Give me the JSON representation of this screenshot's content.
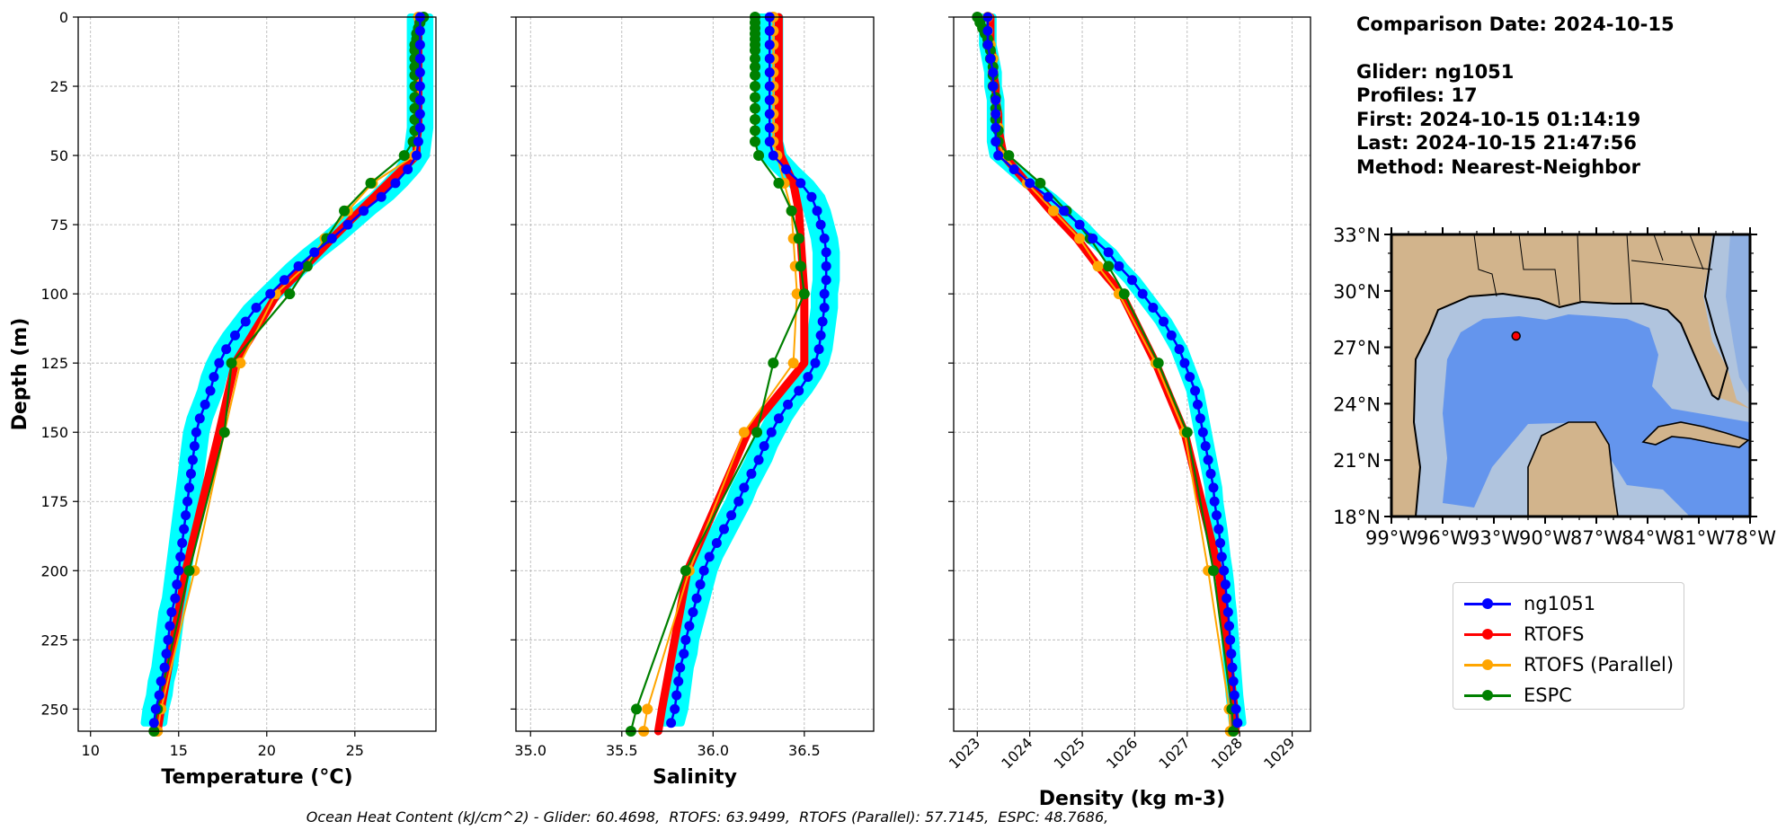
{
  "colors": {
    "glider": "#0000ff",
    "glider_band": "#00ffff",
    "rtofs": "#ff0000",
    "rtofs_parallel": "#ffa500",
    "espc": "#008000",
    "land": "#d2b48c",
    "ocean_deep": "#6495ed",
    "ocean_mid": "#8fb0e3",
    "ocean_shelf": "#b0c4de"
  },
  "info": {
    "comparison_date": "Comparison Date: 2024-10-15",
    "glider": "Glider: ng1051",
    "profiles": "Profiles: 17",
    "first": "First: 2024-10-15 01:14:19",
    "last": "Last: 2024-10-15 21:47:56",
    "method": "Method: Nearest-Neighbor"
  },
  "legend": [
    {
      "name": "ng1051",
      "color": "#0000ff"
    },
    {
      "name": "RTOFS",
      "color": "#ff0000"
    },
    {
      "name": "RTOFS (Parallel)",
      "color": "#ffa500"
    },
    {
      "name": "ESPC",
      "color": "#008000"
    }
  ],
  "footer": "Ocean Heat Content (kJ/cm^2) - Glider: 60.4698,  RTOFS: 63.9499,  RTOFS (Parallel): 57.7145,  ESPC: 48.7686,",
  "map": {
    "lat_ticks": [
      "33°N",
      "30°N",
      "27°N",
      "24°N",
      "21°N",
      "18°N"
    ],
    "lon_ticks": [
      "99°W",
      "96°W",
      "93°W",
      "90°W",
      "87°W",
      "84°W",
      "81°W",
      "78°W"
    ],
    "glider_location": {
      "lon": -91.7,
      "lat": 27.6
    }
  },
  "chart_data": [
    {
      "type": "line",
      "xlabel": "Temperature (°C)",
      "ylabel": "Depth (m)",
      "xlim": [
        9.3,
        29.6
      ],
      "ylim": [
        258,
        0
      ],
      "xticks": [
        10,
        15,
        20,
        25
      ],
      "yticks": [
        0,
        25,
        50,
        75,
        100,
        125,
        150,
        175,
        200,
        225,
        250
      ],
      "grid": true,
      "series": [
        {
          "name": "ng1051",
          "depth": [
            0,
            5,
            10,
            15,
            20,
            25,
            30,
            35,
            40,
            45,
            50,
            55,
            60,
            65,
            70,
            75,
            80,
            85,
            90,
            95,
            100,
            105,
            110,
            115,
            120,
            125,
            130,
            135,
            140,
            145,
            150,
            155,
            160,
            165,
            170,
            175,
            180,
            185,
            190,
            195,
            200,
            205,
            210,
            215,
            220,
            225,
            230,
            235,
            240,
            245,
            250,
            255
          ],
          "values": [
            28.7,
            28.7,
            28.7,
            28.7,
            28.7,
            28.7,
            28.7,
            28.7,
            28.7,
            28.6,
            28.5,
            28.0,
            27.3,
            26.5,
            25.5,
            24.6,
            23.7,
            22.7,
            21.8,
            21.0,
            20.2,
            19.4,
            18.8,
            18.2,
            17.7,
            17.3,
            17.0,
            16.8,
            16.5,
            16.2,
            16.0,
            15.9,
            15.8,
            15.7,
            15.6,
            15.5,
            15.4,
            15.3,
            15.2,
            15.1,
            15.0,
            14.9,
            14.8,
            14.6,
            14.5,
            14.4,
            14.3,
            14.2,
            14.0,
            13.9,
            13.7,
            13.6
          ],
          "band_halfwidth": 0.55
        },
        {
          "name": "RTOFS",
          "depth": [
            0,
            5,
            10,
            15,
            20,
            25,
            30,
            35,
            40,
            45,
            50,
            60,
            70,
            80,
            90,
            100,
            125,
            150,
            200,
            250,
            258
          ],
          "values": [
            28.6,
            28.6,
            28.6,
            28.6,
            28.6,
            28.6,
            28.6,
            28.6,
            28.6,
            28.5,
            28.5,
            26.9,
            25.3,
            23.7,
            22.2,
            20.6,
            18.2,
            17.3,
            15.4,
            14.0,
            13.8
          ]
        },
        {
          "name": "RTOFS (Parallel)",
          "depth": [
            0,
            5,
            10,
            15,
            20,
            25,
            30,
            35,
            40,
            45,
            50,
            60,
            70,
            80,
            90,
            100,
            125,
            150,
            200,
            250,
            258
          ],
          "values": [
            28.6,
            28.6,
            28.6,
            28.6,
            28.6,
            28.6,
            28.6,
            28.6,
            28.6,
            28.5,
            28.4,
            26.0,
            24.6,
            23.3,
            22.2,
            20.5,
            18.5,
            17.6,
            15.9,
            14.0,
            13.8
          ]
        },
        {
          "name": "ESPC",
          "depth": [
            0,
            2,
            4,
            6,
            8,
            10,
            12,
            15,
            18,
            21,
            25,
            29,
            33,
            37,
            41,
            45,
            50,
            60,
            70,
            80,
            90,
            100,
            125,
            150,
            200,
            250,
            258
          ],
          "values": [
            28.9,
            28.7,
            28.6,
            28.5,
            28.5,
            28.4,
            28.4,
            28.4,
            28.4,
            28.4,
            28.4,
            28.4,
            28.4,
            28.4,
            28.4,
            28.3,
            27.8,
            25.9,
            24.4,
            23.4,
            22.3,
            21.3,
            18.0,
            17.6,
            15.6,
            13.8,
            13.6
          ]
        }
      ]
    },
    {
      "type": "line",
      "xlabel": "Salinity",
      "ylim": [
        258,
        0
      ],
      "xlim": [
        34.92,
        36.88
      ],
      "xticks": [
        35.0,
        35.5,
        36.0,
        36.5
      ],
      "yticks": [
        0,
        25,
        50,
        75,
        100,
        125,
        150,
        175,
        200,
        225,
        250
      ],
      "grid": true,
      "series": [
        {
          "name": "ng1051",
          "depth": [
            0,
            5,
            10,
            15,
            20,
            25,
            30,
            35,
            40,
            45,
            50,
            55,
            60,
            65,
            70,
            75,
            80,
            85,
            90,
            95,
            100,
            105,
            110,
            115,
            120,
            125,
            130,
            135,
            140,
            145,
            150,
            155,
            160,
            165,
            170,
            175,
            180,
            185,
            190,
            195,
            200,
            205,
            210,
            215,
            220,
            225,
            230,
            235,
            240,
            245,
            250,
            255
          ],
          "values": [
            36.31,
            36.31,
            36.31,
            36.31,
            36.31,
            36.31,
            36.31,
            36.31,
            36.31,
            36.31,
            36.33,
            36.4,
            36.48,
            36.54,
            36.57,
            36.59,
            36.61,
            36.62,
            36.62,
            36.62,
            36.61,
            36.61,
            36.6,
            36.59,
            36.58,
            36.56,
            36.52,
            36.47,
            36.41,
            36.36,
            36.32,
            36.28,
            36.25,
            36.21,
            36.17,
            36.14,
            36.1,
            36.06,
            36.02,
            35.98,
            35.95,
            35.93,
            35.91,
            35.89,
            35.87,
            35.85,
            35.84,
            35.82,
            35.81,
            35.8,
            35.79,
            35.77
          ],
          "band_halfwidth": 0.055
        },
        {
          "name": "RTOFS",
          "depth": [
            0,
            5,
            10,
            15,
            20,
            25,
            30,
            35,
            40,
            45,
            50,
            60,
            70,
            80,
            90,
            100,
            125,
            150,
            200,
            250,
            258
          ],
          "values": [
            36.36,
            36.36,
            36.36,
            36.36,
            36.36,
            36.36,
            36.36,
            36.36,
            36.36,
            36.36,
            36.37,
            36.44,
            36.47,
            36.48,
            36.49,
            36.5,
            36.5,
            36.19,
            35.86,
            35.72,
            35.7
          ]
        },
        {
          "name": "RTOFS (Parallel)",
          "depth": [
            0,
            5,
            10,
            15,
            20,
            25,
            30,
            35,
            40,
            45,
            50,
            60,
            70,
            80,
            90,
            100,
            125,
            150,
            200,
            250,
            258
          ],
          "values": [
            36.33,
            36.33,
            36.33,
            36.33,
            36.33,
            36.33,
            36.33,
            36.33,
            36.33,
            36.33,
            36.35,
            36.39,
            36.43,
            36.44,
            36.45,
            36.46,
            36.44,
            36.17,
            35.87,
            35.64,
            35.62
          ]
        },
        {
          "name": "ESPC",
          "depth": [
            0,
            2,
            4,
            6,
            8,
            10,
            12,
            15,
            18,
            21,
            25,
            29,
            33,
            37,
            41,
            45,
            50,
            60,
            70,
            80,
            90,
            100,
            125,
            150,
            200,
            250,
            258
          ],
          "values": [
            36.23,
            36.23,
            36.23,
            36.23,
            36.23,
            36.23,
            36.23,
            36.23,
            36.23,
            36.23,
            36.23,
            36.23,
            36.23,
            36.23,
            36.23,
            36.23,
            36.25,
            36.36,
            36.43,
            36.47,
            36.48,
            36.5,
            36.33,
            36.24,
            35.85,
            35.58,
            35.55
          ]
        }
      ]
    },
    {
      "type": "line",
      "xlabel": "Density (kg m-3)",
      "ylim": [
        258,
        0
      ],
      "xlim": [
        1022.55,
        1029.35
      ],
      "xticks": [
        1023,
        1024,
        1025,
        1026,
        1027,
        1028,
        1029
      ],
      "yticks": [
        0,
        25,
        50,
        75,
        100,
        125,
        150,
        175,
        200,
        225,
        250
      ],
      "grid": true,
      "series": [
        {
          "name": "ng1051",
          "depth": [
            0,
            5,
            10,
            15,
            20,
            25,
            30,
            35,
            40,
            45,
            50,
            55,
            60,
            65,
            70,
            75,
            80,
            85,
            90,
            95,
            100,
            105,
            110,
            115,
            120,
            125,
            130,
            135,
            140,
            145,
            150,
            155,
            160,
            165,
            170,
            175,
            180,
            185,
            190,
            195,
            200,
            205,
            210,
            215,
            220,
            225,
            230,
            235,
            240,
            245,
            250,
            255
          ],
          "values": [
            1023.2,
            1023.2,
            1023.2,
            1023.25,
            1023.3,
            1023.3,
            1023.35,
            1023.35,
            1023.35,
            1023.35,
            1023.4,
            1023.7,
            1024.0,
            1024.35,
            1024.65,
            1024.95,
            1025.2,
            1025.5,
            1025.7,
            1025.95,
            1026.15,
            1026.35,
            1026.55,
            1026.7,
            1026.85,
            1026.95,
            1027.05,
            1027.15,
            1027.2,
            1027.25,
            1027.3,
            1027.35,
            1027.4,
            1027.45,
            1027.5,
            1027.52,
            1027.56,
            1027.6,
            1027.63,
            1027.66,
            1027.7,
            1027.73,
            1027.75,
            1027.78,
            1027.8,
            1027.82,
            1027.84,
            1027.86,
            1027.88,
            1027.9,
            1027.93,
            1027.96
          ],
          "band_halfwidth": 0.1
        },
        {
          "name": "RTOFS",
          "depth": [
            0,
            5,
            10,
            15,
            20,
            25,
            30,
            35,
            40,
            45,
            50,
            60,
            70,
            80,
            90,
            100,
            125,
            150,
            200,
            250,
            258
          ],
          "values": [
            1023.25,
            1023.25,
            1023.25,
            1023.3,
            1023.3,
            1023.35,
            1023.35,
            1023.4,
            1023.4,
            1023.45,
            1023.5,
            1023.95,
            1024.4,
            1024.9,
            1025.3,
            1025.75,
            1026.4,
            1026.95,
            1027.6,
            1027.9,
            1027.92
          ]
        },
        {
          "name": "RTOFS (Parallel)",
          "depth": [
            0,
            5,
            10,
            15,
            20,
            25,
            30,
            35,
            40,
            45,
            50,
            60,
            70,
            80,
            90,
            100,
            125,
            150,
            200,
            250,
            258
          ],
          "values": [
            1023.2,
            1023.2,
            1023.25,
            1023.3,
            1023.3,
            1023.3,
            1023.35,
            1023.35,
            1023.4,
            1023.4,
            1023.5,
            1023.95,
            1024.45,
            1024.95,
            1025.3,
            1025.7,
            1026.4,
            1026.95,
            1027.4,
            1027.8,
            1027.82
          ]
        },
        {
          "name": "ESPC",
          "depth": [
            0,
            2,
            4,
            6,
            8,
            10,
            12,
            15,
            18,
            21,
            25,
            29,
            33,
            37,
            41,
            45,
            50,
            60,
            70,
            80,
            90,
            100,
            125,
            150,
            200,
            250,
            258
          ],
          "values": [
            1023.0,
            1023.05,
            1023.1,
            1023.15,
            1023.2,
            1023.2,
            1023.25,
            1023.25,
            1023.3,
            1023.3,
            1023.3,
            1023.35,
            1023.35,
            1023.35,
            1023.4,
            1023.4,
            1023.6,
            1024.2,
            1024.7,
            1025.15,
            1025.5,
            1025.8,
            1026.45,
            1027.0,
            1027.5,
            1027.85,
            1027.88
          ]
        }
      ]
    }
  ]
}
